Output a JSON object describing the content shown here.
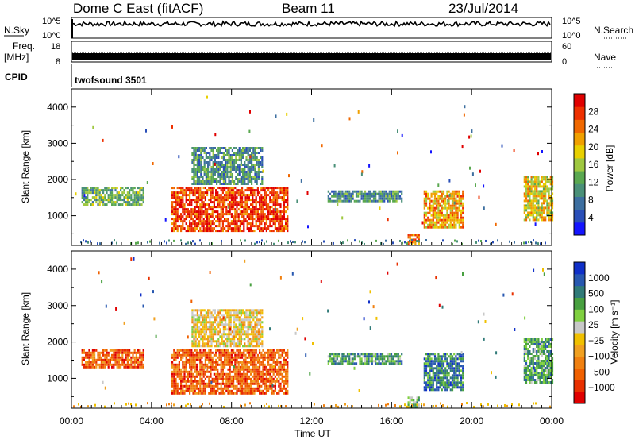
{
  "header": {
    "station": "Dome C East (fitACF)",
    "beam": "Beam 11",
    "date": "23/Jul/2014"
  },
  "strips": {
    "nsky_label": "N.Sky",
    "nsky_ticks": [
      "10^5",
      "10^0"
    ],
    "nsearch_label": "N.Search",
    "nsearch_ticks": [
      "10^5",
      "10^0"
    ],
    "freq_label": "Freq.",
    "freq_unit": "[MHz]",
    "freq_ticks": [
      "18",
      "8"
    ],
    "nave_label": "Nave",
    "nave_ticks": [
      "60",
      "0"
    ],
    "cpid_label": "CPID",
    "cpid_value": "twofsound 3501"
  },
  "chart_data": [
    {
      "type": "heatmap",
      "title": "",
      "ylabel": "Slant Range [km]",
      "xlabel": "",
      "xlim": [
        "00:00",
        "24:00"
      ],
      "ylim": [
        180,
        4500
      ],
      "y_ticks": [
        "4000",
        "3000",
        "2000",
        "1000"
      ],
      "colorbar": {
        "label": "Power [dB]",
        "ticks": [
          "28",
          "24",
          "20",
          "16",
          "12",
          "8",
          "4"
        ],
        "range": [
          0,
          30
        ],
        "colors": [
          "#1414ff",
          "#2a4fb8",
          "#3d6fa0",
          "#4a9078",
          "#5aa850",
          "#9fc840",
          "#e8d000",
          "#f0a000",
          "#f06800",
          "#ee3000",
          "#e00000"
        ]
      },
      "regions": [
        {
          "t_start": 5.0,
          "t_end": 10.8,
          "r_min": 600,
          "r_max": 1800,
          "value": 26
        },
        {
          "t_start": 6.0,
          "t_end": 9.5,
          "r_min": 1900,
          "r_max": 2900,
          "value": 10
        },
        {
          "t_start": 0.5,
          "t_end": 3.6,
          "r_min": 1300,
          "r_max": 1800,
          "value": 12
        },
        {
          "t_start": 12.8,
          "t_end": 16.5,
          "r_min": 1400,
          "r_max": 1700,
          "value": 8
        },
        {
          "t_start": 16.8,
          "t_end": 17.4,
          "r_min": 200,
          "r_max": 500,
          "value": 24
        },
        {
          "t_start": 17.6,
          "t_end": 19.6,
          "r_min": 700,
          "r_max": 1700,
          "value": 20
        },
        {
          "t_start": 22.6,
          "t_end": 24.0,
          "r_min": 900,
          "r_max": 2100,
          "value": 18
        }
      ]
    },
    {
      "type": "heatmap",
      "title": "",
      "ylabel": "Slant Range [km]",
      "xlabel": "Time UT",
      "x_ticks": [
        "00:00",
        "04:00",
        "08:00",
        "12:00",
        "16:00",
        "20:00",
        "00:00"
      ],
      "y_ticks": [
        "4000",
        "3000",
        "2000",
        "1000"
      ],
      "colorbar": {
        "label": "Velocity [m s⁻¹]",
        "ticks": [
          "1000",
          "500",
          "100",
          "25",
          "−25",
          "−100",
          "−500",
          "−1000"
        ],
        "colors": [
          "#1030c8",
          "#2858b0",
          "#307a78",
          "#48a040",
          "#80d040",
          "#c8c8c8",
          "#f0c000",
          "#f0a020",
          "#f08010",
          "#f06000",
          "#e83000",
          "#e00000"
        ]
      },
      "regions": [
        {
          "t_start": 5.0,
          "t_end": 10.8,
          "r_min": 600,
          "r_max": 1800,
          "value": -150
        },
        {
          "t_start": 6.0,
          "t_end": 9.5,
          "r_min": 1900,
          "r_max": 2900,
          "value": 0
        },
        {
          "t_start": 0.5,
          "t_end": 3.6,
          "r_min": 1300,
          "r_max": 1800,
          "value": -200
        },
        {
          "t_start": 12.8,
          "t_end": 16.5,
          "r_min": 1400,
          "r_max": 1700,
          "value": 100
        },
        {
          "t_start": 16.8,
          "t_end": 17.4,
          "r_min": 200,
          "r_max": 500,
          "value": 80
        },
        {
          "t_start": 17.6,
          "t_end": 19.6,
          "r_min": 700,
          "r_max": 1700,
          "value": 300
        },
        {
          "t_start": 22.6,
          "t_end": 24.0,
          "r_min": 900,
          "r_max": 2100,
          "value": 150
        }
      ]
    }
  ]
}
